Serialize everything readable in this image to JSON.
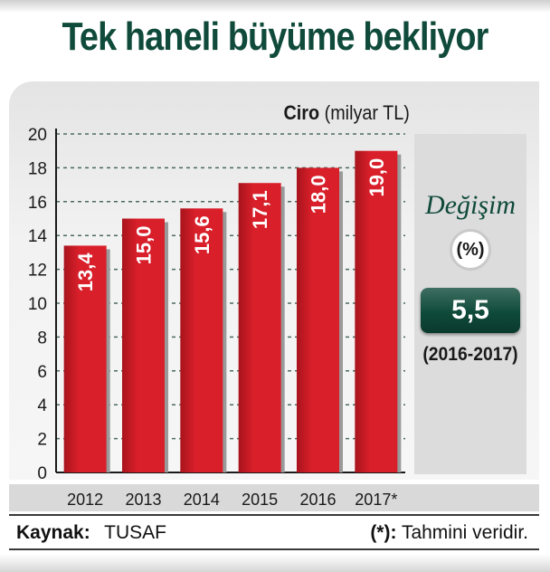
{
  "title": "Tek haneli büyüme bekliyor",
  "axis_title": {
    "bold": "Ciro",
    "unit": "(milyar TL)"
  },
  "side_panel": {
    "label": "Değişim",
    "unit": "(%)",
    "value": "5,5",
    "period": "(2016-2017)"
  },
  "footer": {
    "source_label": "Kaynak:",
    "source_value": "TUSAF",
    "note_mark": "(*):",
    "note_text": "Tahmini veridir."
  },
  "colors": {
    "bar": "#d81f2a",
    "bar_dark": "#a8141c",
    "title": "#0f4a3a"
  },
  "chart_data": {
    "type": "bar",
    "categories": [
      "2012",
      "2013",
      "2014",
      "2015",
      "2016",
      "2017*"
    ],
    "values": [
      13.4,
      15.0,
      15.6,
      17.1,
      18.0,
      19.0
    ],
    "value_labels": [
      "13,4",
      "15,0",
      "15,6",
      "17,1",
      "18,0",
      "19,0"
    ],
    "yticks": [
      "0",
      "2",
      "4",
      "6",
      "8",
      "10",
      "12",
      "14",
      "16",
      "18",
      "20"
    ],
    "ylim": [
      0,
      20
    ],
    "grid": true
  }
}
